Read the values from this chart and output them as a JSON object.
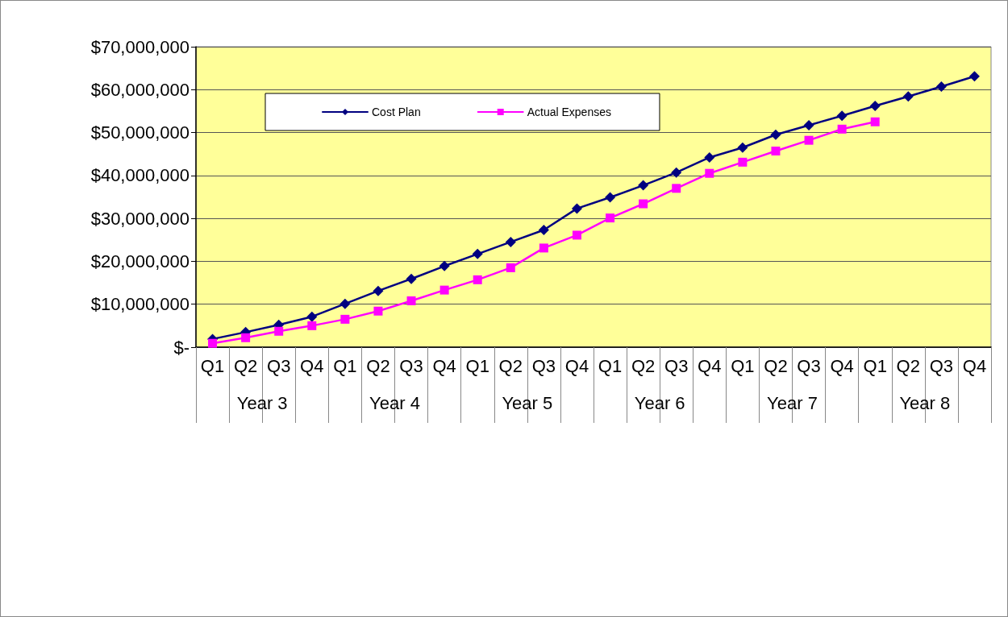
{
  "chart_data": {
    "type": "line",
    "categories": [
      "Q1",
      "Q2",
      "Q3",
      "Q4",
      "Q1",
      "Q2",
      "Q3",
      "Q4",
      "Q1",
      "Q2",
      "Q3",
      "Q4",
      "Q1",
      "Q2",
      "Q3",
      "Q4",
      "Q1",
      "Q2",
      "Q3",
      "Q4",
      "Q1",
      "Q2",
      "Q3",
      "Q4"
    ],
    "annotations": [
      "Year 3",
      "Year 4",
      "Year 5",
      "Year 6",
      "Year 7",
      "Year 8"
    ],
    "series": [
      {
        "name": "Cost Plan",
        "color": "#000080",
        "marker": "diamond",
        "values": [
          1900000,
          3500000,
          5200000,
          7100000,
          10100000,
          13100000,
          15900000,
          18900000,
          21700000,
          24500000,
          27300000,
          32300000,
          34900000,
          37700000,
          40700000,
          44200000,
          46500000,
          49500000,
          51700000,
          53900000,
          56200000,
          58400000,
          60700000,
          63100000
        ]
      },
      {
        "name": "Actual Expenses",
        "color": "#ff00ff",
        "marker": "square",
        "values": [
          900000,
          2200000,
          3700000,
          5000000,
          6500000,
          8400000,
          10800000,
          13300000,
          15700000,
          18500000,
          23100000,
          26100000,
          30100000,
          33400000,
          37000000,
          40500000,
          43100000,
          45700000,
          48200000,
          50800000,
          52500000,
          null,
          null,
          null
        ]
      }
    ],
    "ylim": [
      0,
      70000000
    ],
    "yticks": [
      {
        "value": 0,
        "label": "$-"
      },
      {
        "value": 10000000,
        "label": "$10,000,000"
      },
      {
        "value": 20000000,
        "label": "$20,000,000"
      },
      {
        "value": 30000000,
        "label": "$30,000,000"
      },
      {
        "value": 40000000,
        "label": "$40,000,000"
      },
      {
        "value": 50000000,
        "label": "$50,000,000"
      },
      {
        "value": 60000000,
        "label": "$60,000,000"
      },
      {
        "value": 70000000,
        "label": "$70,000,000"
      }
    ],
    "grid": "y",
    "legend": "top left",
    "line_style": "solid"
  }
}
